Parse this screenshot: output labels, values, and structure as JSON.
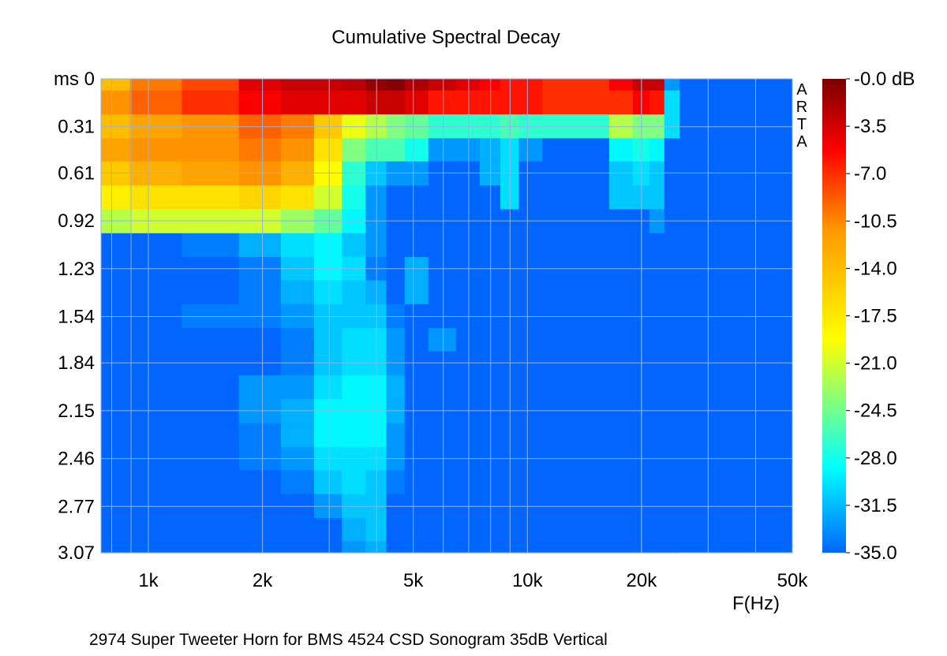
{
  "chart_data": {
    "type": "heatmap",
    "title": "Cumulative Spectral Decay",
    "subtitle": "2974 Super Tweeter Horn for BMS 4524  CSD Sonogram 35dB Vertical",
    "xlabel": "F(Hz)",
    "ylabel": "ms",
    "x_scale": "log",
    "xlim": [
      750,
      50000
    ],
    "ylim": [
      0,
      3.07
    ],
    "x_ticks": [
      {
        "value": 1000,
        "label": "1k"
      },
      {
        "value": 2000,
        "label": "2k"
      },
      {
        "value": 5000,
        "label": "5k"
      },
      {
        "value": 10000,
        "label": "10k"
      },
      {
        "value": 20000,
        "label": "20k"
      },
      {
        "value": 50000,
        "label": "50k"
      }
    ],
    "y_ticks": [
      {
        "value": 0,
        "label": "ms 0"
      },
      {
        "value": 0.31,
        "label": "0.31"
      },
      {
        "value": 0.61,
        "label": "0.61"
      },
      {
        "value": 0.92,
        "label": "0.92"
      },
      {
        "value": 1.23,
        "label": "1.23"
      },
      {
        "value": 1.54,
        "label": "1.54"
      },
      {
        "value": 1.84,
        "label": "1.84"
      },
      {
        "value": 2.15,
        "label": "2.15"
      },
      {
        "value": 2.46,
        "label": "2.46"
      },
      {
        "value": 2.77,
        "label": "2.77"
      },
      {
        "value": 3.07,
        "label": "3.07"
      }
    ],
    "colorbar": {
      "range": [
        -35,
        0
      ],
      "unit": "dB",
      "labels": [
        "-0.0 dB",
        "-3.5",
        "-7.0",
        "-10.5",
        "-14.0",
        "-17.5",
        "-21.0",
        "-24.5",
        "-28.0",
        "-31.5",
        "-35.0"
      ]
    },
    "grid": true,
    "watermark": "ARTA",
    "frequencies_hz": [
      800,
      1000,
      1500,
      2000,
      2500,
      3000,
      3500,
      4000,
      4500,
      5000,
      6000,
      7000,
      8000,
      9000,
      10000,
      12000,
      15000,
      18000,
      20000,
      22000,
      24000
    ],
    "times_ms": [
      0,
      0.15,
      0.31,
      0.46,
      0.61,
      0.77,
      0.92,
      1.08,
      1.23,
      1.38,
      1.54,
      1.69,
      1.84,
      2.0,
      2.15,
      2.31,
      2.46,
      2.61,
      2.77,
      2.92,
      3.07
    ],
    "values_db": [
      [
        -14,
        -10,
        -8,
        -4,
        -3,
        -3,
        -2.5,
        -1,
        -0.5,
        -2,
        -3,
        -4,
        -5,
        -6,
        -6,
        -7,
        -7,
        -5,
        -3,
        -3,
        -33
      ],
      [
        -11,
        -9,
        -7,
        -5,
        -4,
        -4,
        -4,
        -3,
        -3,
        -4,
        -6,
        -6,
        -6,
        -6,
        -6,
        -7,
        -7,
        -7,
        -5,
        -6,
        -30
      ],
      [
        -14,
        -12,
        -11,
        -9,
        -10,
        -15,
        -20,
        -22,
        -24,
        -25,
        -27,
        -27,
        -27,
        -26,
        -27,
        -27,
        -27,
        -22,
        -24,
        -24,
        -30
      ],
      [
        -12,
        -11,
        -11,
        -10,
        -11,
        -17,
        -24,
        -26,
        -26,
        -28,
        -33,
        -33,
        -32,
        -30,
        -33,
        -35,
        -35,
        -29,
        -28,
        -29,
        -35
      ],
      [
        -15,
        -13,
        -12,
        -11,
        -13,
        -19,
        -27,
        -31,
        -33,
        -33,
        -35,
        -35,
        -32,
        -30,
        -35,
        -35,
        -35,
        -31,
        -30,
        -31,
        -35
      ],
      [
        -18,
        -17,
        -17,
        -16,
        -17,
        -21,
        -28,
        -33,
        -35,
        -35,
        -35,
        -35,
        -35,
        -30,
        -35,
        -35,
        -35,
        -31,
        -31,
        -31,
        -35
      ],
      [
        -22,
        -21,
        -21,
        -21,
        -23,
        -25,
        -29,
        -33,
        -35,
        -35,
        -35,
        -35,
        -35,
        -35,
        -35,
        -35,
        -35,
        -35,
        -35,
        -33,
        -35
      ],
      [
        -35,
        -35,
        -34,
        -32,
        -30,
        -29,
        -31,
        -33,
        -35,
        -35,
        -35,
        -35,
        -35,
        -35,
        -35,
        -35,
        -35,
        -35,
        -35,
        -35,
        -35
      ],
      [
        -35,
        -35,
        -35,
        -34,
        -31,
        -29,
        -30,
        -34,
        -35,
        -32,
        -35,
        -35,
        -35,
        -35,
        -35,
        -35,
        -35,
        -35,
        -35,
        -35,
        -35
      ],
      [
        -35,
        -35,
        -35,
        -34,
        -32,
        -30,
        -31,
        -32,
        -35,
        -32,
        -35,
        -35,
        -35,
        -35,
        -35,
        -35,
        -35,
        -35,
        -35,
        -35,
        -35
      ],
      [
        -35,
        -35,
        -34,
        -34,
        -33,
        -31,
        -31,
        -31,
        -34,
        -35,
        -35,
        -35,
        -35,
        -35,
        -35,
        -35,
        -35,
        -35,
        -35,
        -35,
        -35
      ],
      [
        -35,
        -35,
        -35,
        -35,
        -34,
        -31,
        -30,
        -30,
        -33,
        -35,
        -33,
        -35,
        -35,
        -35,
        -35,
        -35,
        -35,
        -35,
        -35,
        -35,
        -35
      ],
      [
        -35,
        -35,
        -35,
        -35,
        -34,
        -31,
        -30,
        -30,
        -33,
        -35,
        -35,
        -35,
        -35,
        -35,
        -35,
        -35,
        -35,
        -35,
        -35,
        -35,
        -35
      ],
      [
        -35,
        -35,
        -35,
        -33,
        -33,
        -30,
        -29,
        -29,
        -32,
        -35,
        -35,
        -35,
        -35,
        -35,
        -35,
        -35,
        -35,
        -35,
        -35,
        -35,
        -35
      ],
      [
        -35,
        -35,
        -35,
        -33,
        -32,
        -29,
        -29,
        -29,
        -32,
        -35,
        -35,
        -35,
        -35,
        -35,
        -35,
        -35,
        -35,
        -35,
        -35,
        -35,
        -35
      ],
      [
        -35,
        -35,
        -35,
        -34,
        -32,
        -29,
        -29,
        -29,
        -33,
        -35,
        -35,
        -35,
        -35,
        -35,
        -35,
        -35,
        -35,
        -35,
        -35,
        -35,
        -35
      ],
      [
        -35,
        -35,
        -35,
        -34,
        -33,
        -30,
        -30,
        -30,
        -33,
        -35,
        -35,
        -35,
        -35,
        -35,
        -35,
        -35,
        -35,
        -35,
        -35,
        -35,
        -35
      ],
      [
        -35,
        -35,
        -35,
        -35,
        -34,
        -31,
        -30,
        -31,
        -34,
        -35,
        -35,
        -35,
        -35,
        -35,
        -35,
        -35,
        -35,
        -35,
        -35,
        -35,
        -35
      ],
      [
        -35,
        -35,
        -35,
        -35,
        -35,
        -33,
        -31,
        -31,
        -35,
        -35,
        -35,
        -35,
        -35,
        -35,
        -35,
        -35,
        -35,
        -35,
        -35,
        -35,
        -35
      ],
      [
        -35,
        -35,
        -35,
        -35,
        -35,
        -35,
        -32,
        -31,
        -35,
        -35,
        -35,
        -35,
        -35,
        -35,
        -35,
        -35,
        -35,
        -35,
        -35,
        -35,
        -35
      ],
      [
        -35,
        -35,
        -35,
        -35,
        -35,
        -35,
        -33,
        -32,
        -35,
        -35,
        -35,
        -35,
        -35,
        -35,
        -35,
        -35,
        -35,
        -35,
        -35,
        -35,
        -35
      ]
    ]
  }
}
